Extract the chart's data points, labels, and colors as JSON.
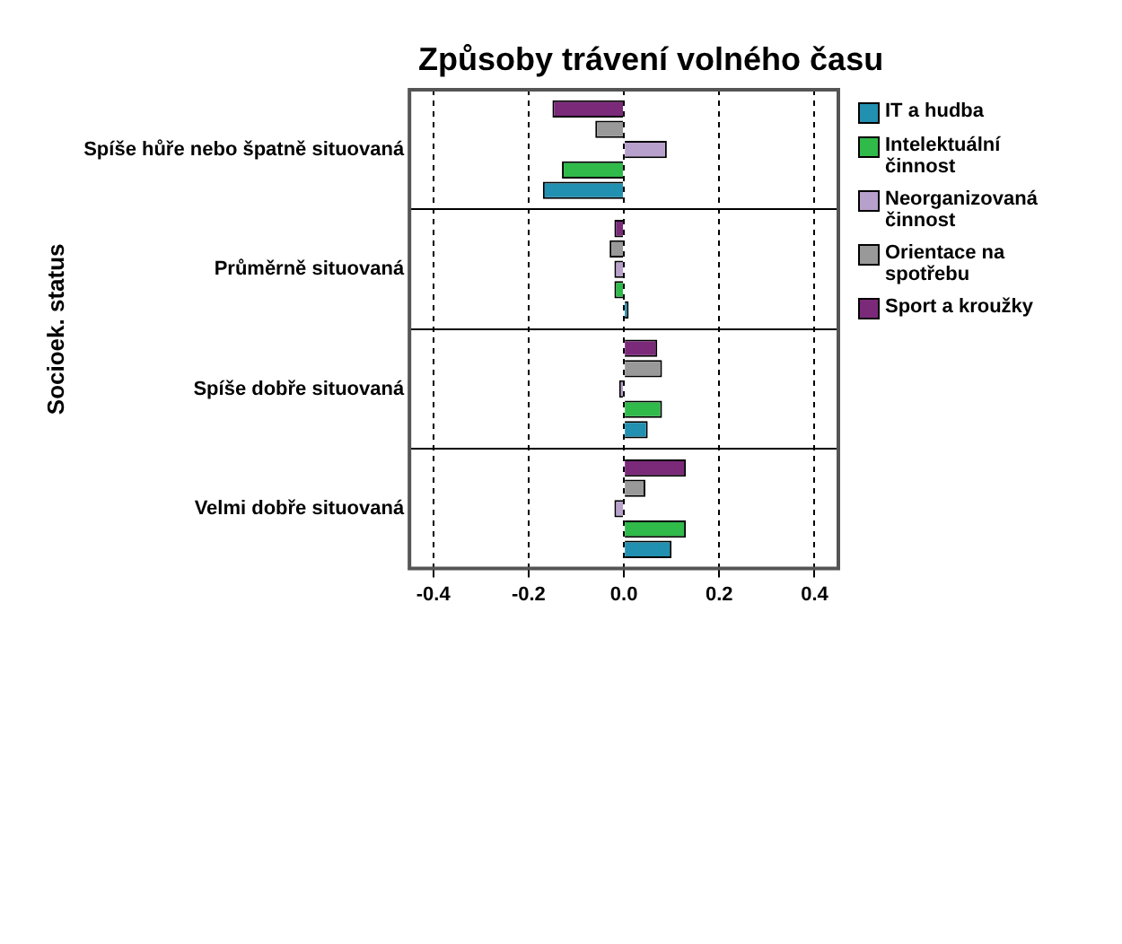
{
  "chart_data": {
    "type": "bar",
    "orientation": "horizontal",
    "title": "Způsoby trávení volného času",
    "ylabel": "Socioek. status",
    "categories": [
      "Spíše hůře nebo špatně situovaná",
      "Průměrně situovaná",
      "Spíše dobře situovaná",
      "Velmi dobře situovaná"
    ],
    "series": [
      {
        "name": "Sport a kroužky",
        "color": "#7b2a7a",
        "values": [
          -0.15,
          -0.02,
          0.07,
          0.13
        ]
      },
      {
        "name": "Orientace na spotřebu",
        "color": "#999999",
        "values": [
          -0.06,
          -0.03,
          0.08,
          0.045
        ]
      },
      {
        "name": "Neorganizovaná činnost",
        "color": "#b8a0cc",
        "values": [
          0.09,
          -0.02,
          -0.01,
          -0.02
        ]
      },
      {
        "name": "Intelektuální činnost",
        "color": "#2fba4a",
        "values": [
          -0.13,
          -0.02,
          0.08,
          0.13
        ]
      },
      {
        "name": "IT a hudba",
        "color": "#2290b0",
        "values": [
          -0.17,
          0.01,
          0.05,
          0.1
        ]
      }
    ],
    "xlim": [
      -0.45,
      0.45
    ],
    "xticks": [
      {
        "value": -0.4,
        "label": "-0.4"
      },
      {
        "value": -0.2,
        "label": "-0.2"
      },
      {
        "value": 0,
        "label": "0.0"
      },
      {
        "value": 0.2,
        "label": "0.2"
      },
      {
        "value": 0.4,
        "label": "0.4"
      }
    ],
    "grid": true,
    "legend": "right"
  }
}
